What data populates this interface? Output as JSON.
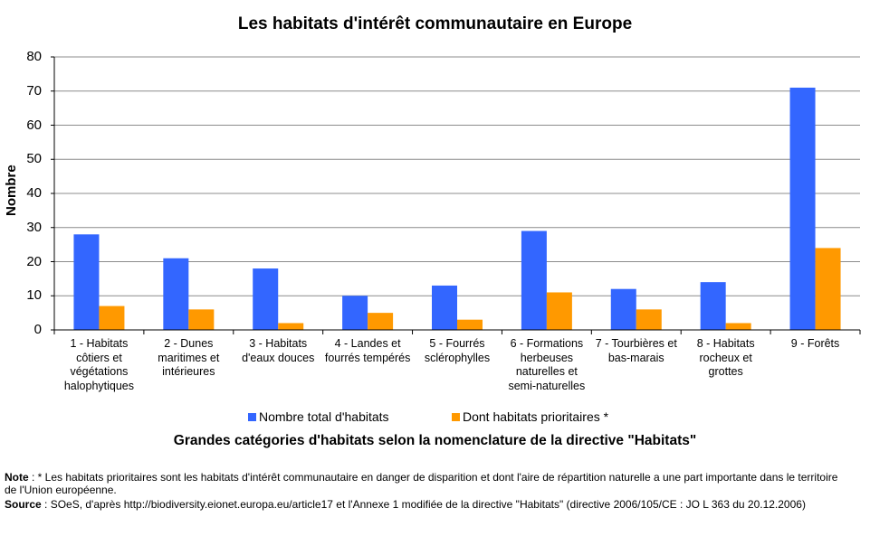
{
  "chart_data": {
    "type": "bar",
    "title": "Les habitats d'intérêt communautaire en Europe",
    "xlabel": "Grandes catégories d'habitats selon la nomenclature de la directive \"Habitats\"",
    "ylabel": "Nombre",
    "ylim": [
      0,
      80
    ],
    "yticks": [
      0,
      10,
      20,
      30,
      40,
      50,
      60,
      70,
      80
    ],
    "grid": true,
    "legend_position": "bottom",
    "categories": [
      "1 - Habitats côtiers et végétations halophytiques",
      "2 - Dunes maritimes et intérieures",
      "3 - Habitats d'eaux douces",
      "4 - Landes et fourrés tempérés",
      "5 - Fourrés sclérophylles",
      "6 - Formations herbeuses naturelles et semi-naturelles",
      "7 - Tourbières et bas-marais",
      "8 - Habitats rocheux et grottes",
      "9 - Forêts"
    ],
    "series": [
      {
        "name": "Nombre total d'habitats",
        "color": "#3366ff",
        "values": [
          28,
          21,
          18,
          10,
          13,
          29,
          12,
          14,
          71
        ]
      },
      {
        "name": "Dont habitats prioritaires *",
        "color": "#ff9900",
        "values": [
          7,
          6,
          2,
          5,
          3,
          11,
          6,
          2,
          24
        ]
      }
    ]
  },
  "notes": {
    "note_label": "Note",
    "note_text": " : * Les habitats prioritaires sont les habitats d'intérêt communautaire en danger de disparition et dont l'aire de répartition naturelle a une part importante dans le territoire de l'Union européenne.",
    "source_label": "Source",
    "source_text": " : SOeS, d'après http://biodiversity.eionet.europa.eu/article17 et l'Annexe 1 modifiée de la directive \"Habitats\" (directive 2006/105/CE : JO L 363 du 20.12.2006)"
  }
}
